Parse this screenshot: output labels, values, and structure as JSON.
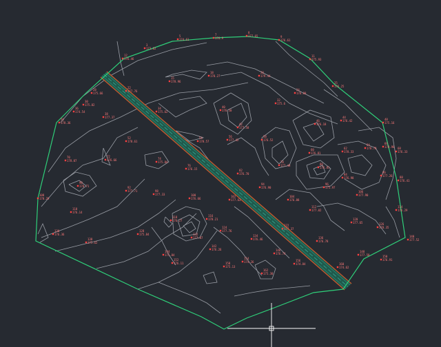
{
  "app": "CAD drawing canvas",
  "colors": {
    "background": "#262a31",
    "boundary": "#2fd07a",
    "contour": "#9a9ea6",
    "road_fill": "#1f5a4c",
    "road_center": "#3ab09a",
    "road_edge": "#d4562a",
    "point_label": "#ff7a7a",
    "crosshair": "#ffffff"
  },
  "drawing": {
    "boundary_label": "site-boundary",
    "road_label": "road-alignment",
    "contours_label": "contour-lines",
    "points_label": "survey-points"
  },
  "cursor": {
    "name": "crosshair-cursor",
    "icon": "crosshair-icon"
  },
  "survey_points": [
    {
      "code": "3",
      "elev": "173.62"
    },
    {
      "code": "5",
      "elev": "174.61"
    },
    {
      "code": "7",
      "elev": "176.9"
    },
    {
      "code": "8",
      "elev": "177.65"
    },
    {
      "code": "9",
      "elev": "176.61"
    },
    {
      "code": "11",
      "elev": "175.93"
    },
    {
      "code": "12",
      "elev": "176.46"
    },
    {
      "code": "15",
      "elev": "178.96"
    },
    {
      "code": "18",
      "elev": "178.27"
    },
    {
      "code": "20",
      "elev": "179.44"
    },
    {
      "code": "22",
      "elev": "177.76"
    },
    {
      "code": "24",
      "elev": "176.80"
    },
    {
      "code": "25",
      "elev": "176.25"
    },
    {
      "code": "28",
      "elev": "175.66"
    },
    {
      "code": "30",
      "elev": "175.82"
    },
    {
      "code": "32",
      "elev": "175.6"
    },
    {
      "code": "34",
      "elev": "175.62"
    },
    {
      "code": "36",
      "elev": "174.54"
    },
    {
      "code": "38",
      "elev": "177.37"
    },
    {
      "code": "40",
      "elev": "176.50"
    },
    {
      "code": "42",
      "elev": "177.58"
    },
    {
      "code": "44",
      "elev": "176.42"
    },
    {
      "code": "46",
      "elev": "176.18"
    },
    {
      "code": "48",
      "elev": "175.16"
    },
    {
      "code": "50",
      "elev": "178.36"
    },
    {
      "code": "52",
      "elev": "178.61"
    },
    {
      "code": "54",
      "elev": "178.57"
    },
    {
      "code": "56",
      "elev": "177.42"
    },
    {
      "code": "58",
      "elev": "176.52"
    },
    {
      "code": "60",
      "elev": "176.81"
    },
    {
      "code": "62",
      "elev": "178.33"
    },
    {
      "code": "64",
      "elev": "178.70"
    },
    {
      "code": "66",
      "elev": "178.98"
    },
    {
      "code": "68",
      "elev": "176.33"
    },
    {
      "code": "70",
      "elev": "178.07"
    },
    {
      "code": "72",
      "elev": "176.66"
    },
    {
      "code": "74",
      "elev": "175.84"
    },
    {
      "code": "76",
      "elev": "176.15"
    },
    {
      "code": "78",
      "elev": "177.48"
    },
    {
      "code": "80",
      "elev": "176.81"
    },
    {
      "code": "82",
      "elev": "176.70"
    },
    {
      "code": "84",
      "elev": "176.98"
    },
    {
      "code": "86",
      "elev": "177.26"
    },
    {
      "code": "88",
      "elev": "176.41"
    },
    {
      "code": "90",
      "elev": "178.71"
    },
    {
      "code": "92",
      "elev": "177.71"
    },
    {
      "code": "94",
      "elev": "176.90"
    },
    {
      "code": "96",
      "elev": "175.97"
    },
    {
      "code": "98",
      "elev": "177.33"
    },
    {
      "code": "100",
      "elev": "176.66"
    },
    {
      "code": "102",
      "elev": "177.63"
    },
    {
      "code": "104",
      "elev": "176.88"
    },
    {
      "code": "106",
      "elev": "177.90"
    },
    {
      "code": "108",
      "elev": "178.29"
    },
    {
      "code": "110",
      "elev": "176.14"
    },
    {
      "code": "112",
      "elev": "177.82"
    },
    {
      "code": "114",
      "elev": "176.29"
    },
    {
      "code": "116",
      "elev": "178.21"
    },
    {
      "code": "118",
      "elev": "176.27"
    },
    {
      "code": "120",
      "elev": "177.65"
    },
    {
      "code": "122",
      "elev": "177.37"
    },
    {
      "code": "124",
      "elev": "177.76"
    },
    {
      "code": "126",
      "elev": "178.35"
    },
    {
      "code": "128",
      "elev": "175.84"
    },
    {
      "code": "130",
      "elev": "176.36"
    },
    {
      "code": "132",
      "elev": "177.07"
    },
    {
      "code": "134",
      "elev": "176.46"
    },
    {
      "code": "136",
      "elev": "176.78"
    },
    {
      "code": "138",
      "elev": "175.62"
    },
    {
      "code": "140",
      "elev": "177.52"
    },
    {
      "code": "142",
      "elev": "176.26"
    },
    {
      "code": "144",
      "elev": "175.84"
    },
    {
      "code": "146",
      "elev": "176.74"
    },
    {
      "code": "148",
      "elev": "177.58"
    },
    {
      "code": "150",
      "elev": "176.91"
    },
    {
      "code": "152",
      "elev": "176.11"
    },
    {
      "code": "154",
      "elev": "174.26"
    },
    {
      "code": "156",
      "elev": "174.84"
    },
    {
      "code": "158",
      "elev": "175.13"
    },
    {
      "code": "160",
      "elev": "174.62"
    },
    {
      "code": "162",
      "elev": "175.38"
    }
  ]
}
